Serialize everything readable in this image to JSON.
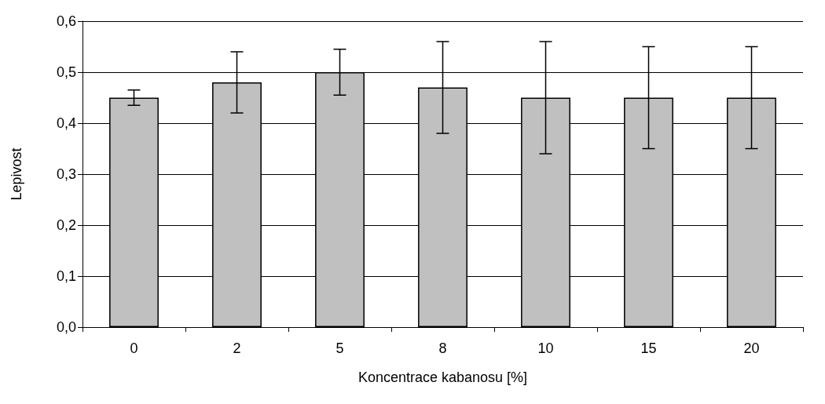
{
  "chart_data": {
    "type": "bar",
    "xlabel": "Koncentrace kabanosu [%]",
    "ylabel": "Lepivost",
    "categories": [
      "0",
      "2",
      "5",
      "8",
      "10",
      "15",
      "20"
    ],
    "values": [
      0.45,
      0.48,
      0.5,
      0.47,
      0.45,
      0.45,
      0.45
    ],
    "errors": [
      0.015,
      0.06,
      0.045,
      0.09,
      0.11,
      0.1,
      0.1
    ],
    "color": "#c0c0c0",
    "ylim": [
      0,
      0.6
    ],
    "yticks": [
      {
        "value": 0,
        "label": "0,0"
      },
      {
        "value": 0.1,
        "label": "0,1"
      },
      {
        "value": 0.2,
        "label": "0,2"
      },
      {
        "value": 0.3,
        "label": "0,3"
      },
      {
        "value": 0.4,
        "label": "0,4"
      },
      {
        "value": 0.5,
        "label": "0,5"
      },
      {
        "value": 0.6,
        "label": "0,6"
      }
    ],
    "grid": "y"
  }
}
